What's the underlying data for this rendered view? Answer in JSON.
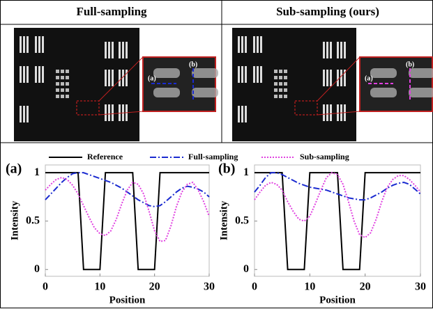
{
  "panels": [
    {
      "title": "Full-sampling",
      "inset_labels": [
        "(a)",
        "(b)"
      ],
      "line_color": "#1a2ad0"
    },
    {
      "title": "Sub-sampling (ours)",
      "inset_labels": [
        "(a)",
        "(b)"
      ],
      "line_color": "#e040e0"
    }
  ],
  "chart_data": [
    {
      "type": "line",
      "label": "(a)",
      "x_label": "Position",
      "y_label": "Intensity",
      "x": [
        0,
        1,
        2,
        3,
        4,
        5,
        6,
        7,
        8,
        9,
        10,
        11,
        12,
        13,
        14,
        15,
        16,
        17,
        18,
        19,
        20,
        21,
        22,
        23,
        24,
        25,
        26,
        27,
        28,
        29,
        30
      ],
      "xlim": [
        0,
        30
      ],
      "xticks": [
        0,
        10,
        20,
        30
      ],
      "ylim": [
        -0.07,
        1.08
      ],
      "yticks": [
        0,
        0.5,
        1
      ],
      "series": [
        {
          "name": "Reference",
          "color": "#000000",
          "style": "solid",
          "values": [
            1,
            1,
            1,
            1,
            1,
            1,
            1,
            0,
            0,
            0,
            0,
            1,
            1,
            1,
            1,
            1,
            1,
            0,
            0,
            0,
            0,
            1,
            1,
            1,
            1,
            1,
            1,
            1,
            1,
            1,
            1
          ]
        },
        {
          "name": "Full-sampling",
          "color": "#1a2ad0",
          "style": "dashdot",
          "values": [
            0.72,
            0.78,
            0.84,
            0.9,
            0.95,
            0.99,
            1.0,
            1.0,
            0.98,
            0.96,
            0.94,
            0.92,
            0.9,
            0.87,
            0.84,
            0.8,
            0.76,
            0.72,
            0.69,
            0.66,
            0.65,
            0.66,
            0.7,
            0.75,
            0.8,
            0.84,
            0.86,
            0.85,
            0.83,
            0.8,
            0.75
          ]
        },
        {
          "name": "Sub-sampling",
          "color": "#e040e0",
          "style": "dotted",
          "values": [
            0.82,
            0.88,
            0.93,
            0.95,
            0.93,
            0.87,
            0.78,
            0.66,
            0.54,
            0.43,
            0.37,
            0.35,
            0.4,
            0.52,
            0.68,
            0.82,
            0.9,
            0.88,
            0.78,
            0.6,
            0.4,
            0.29,
            0.3,
            0.45,
            0.65,
            0.8,
            0.88,
            0.9,
            0.82,
            0.7,
            0.55
          ]
        }
      ]
    },
    {
      "type": "line",
      "label": "(b)",
      "x_label": "Position",
      "y_label": "Intensity",
      "x": [
        0,
        1,
        2,
        3,
        4,
        5,
        6,
        7,
        8,
        9,
        10,
        11,
        12,
        13,
        14,
        15,
        16,
        17,
        18,
        19,
        20,
        21,
        22,
        23,
        24,
        25,
        26,
        27,
        28,
        29,
        30
      ],
      "xlim": [
        0,
        30
      ],
      "xticks": [
        0,
        10,
        20,
        30
      ],
      "ylim": [
        -0.07,
        1.08
      ],
      "yticks": [
        0,
        0.5,
        1
      ],
      "series": [
        {
          "color": "#000000",
          "style": "solid",
          "values": [
            1,
            1,
            1,
            1,
            1,
            1,
            0,
            0,
            0,
            0,
            1,
            1,
            1,
            1,
            1,
            1,
            0,
            0,
            0,
            0,
            1,
            1,
            1,
            1,
            1,
            1,
            1,
            1,
            1,
            1,
            1
          ]
        },
        {
          "color": "#1a2ad0",
          "style": "dashdot",
          "values": [
            0.8,
            0.87,
            0.95,
            1.0,
            1.0,
            0.98,
            0.95,
            0.92,
            0.89,
            0.87,
            0.85,
            0.84,
            0.83,
            0.82,
            0.8,
            0.78,
            0.76,
            0.74,
            0.73,
            0.72,
            0.72,
            0.74,
            0.77,
            0.8,
            0.84,
            0.87,
            0.89,
            0.9,
            0.88,
            0.83,
            0.78
          ]
        },
        {
          "color": "#e040e0",
          "style": "dotted",
          "values": [
            0.72,
            0.8,
            0.87,
            0.9,
            0.88,
            0.82,
            0.7,
            0.6,
            0.52,
            0.5,
            0.55,
            0.68,
            0.82,
            0.95,
            1.0,
            0.98,
            0.88,
            0.7,
            0.5,
            0.36,
            0.33,
            0.38,
            0.52,
            0.7,
            0.85,
            0.93,
            0.97,
            0.97,
            0.93,
            0.87,
            0.8
          ]
        }
      ]
    }
  ]
}
